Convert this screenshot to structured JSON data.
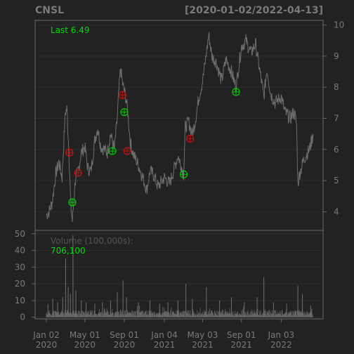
{
  "header": {
    "symbol": "CNSL",
    "range": "[2020-01-02/2022-04-13]"
  },
  "price_panel": {
    "last_label": "Last 6.49"
  },
  "volume_panel": {
    "label": "Volume (100,000s):",
    "last_value": "706,100"
  },
  "colors": {
    "background": "#222222",
    "panel_border": "#6b6b6b",
    "grid": "#2e2e2e",
    "price_line": "#6e6e6e",
    "volume_bar": "#6e6e6e",
    "label_gray": "#7a7a7a",
    "last_green": "#00dd00",
    "buy_marker": "#00cc00",
    "sell_marker": "#cc1111"
  },
  "chart_data": [
    {
      "type": "line",
      "title": "CNSL",
      "subtitle": "[2020-01-02/2022-04-13]",
      "x_range": [
        "2020-01-02",
        "2022-04-13"
      ],
      "ylim": [
        3.4,
        10.15
      ],
      "y_ticks": [
        4,
        5,
        6,
        7,
        8,
        9,
        10
      ],
      "y_tick_labels": [
        "4",
        "5",
        "6",
        "7",
        "8",
        "9",
        "10"
      ],
      "x_tick_labels": [
        {
          "date": "2020-01-02",
          "line1": "Jan 02",
          "line2": "2020"
        },
        {
          "date": "2020-05-01",
          "line1": "May 01",
          "line2": "2020"
        },
        {
          "date": "2020-09-01",
          "line1": "Sep 01",
          "line2": "2020"
        },
        {
          "date": "2021-01-04",
          "line1": "Jan 04",
          "line2": "2021"
        },
        {
          "date": "2021-05-03",
          "line1": "May 03",
          "line2": "2021"
        },
        {
          "date": "2021-09-01",
          "line1": "Sep 01",
          "line2": "2021"
        },
        {
          "date": "2022-01-03",
          "line1": "Jan 03",
          "line2": "2022"
        }
      ],
      "grid": true,
      "series": [
        {
          "points": [
            [
              "2020-01-02",
              3.9
            ],
            [
              "2020-01-10",
              4.0
            ],
            [
              "2020-01-20",
              4.3
            ],
            [
              "2020-01-31",
              5.2
            ],
            [
              "2020-02-10",
              5.6
            ],
            [
              "2020-02-20",
              5.1
            ],
            [
              "2020-03-01",
              7.2
            ],
            [
              "2020-03-06",
              7.3
            ],
            [
              "2020-03-12",
              6.0
            ],
            [
              "2020-03-18",
              4.2
            ],
            [
              "2020-03-23",
              3.7
            ],
            [
              "2020-04-01",
              5.0
            ],
            [
              "2020-04-10",
              5.3
            ],
            [
              "2020-04-20",
              5.9
            ],
            [
              "2020-05-01",
              6.1
            ],
            [
              "2020-05-10",
              5.4
            ],
            [
              "2020-05-20",
              5.3
            ],
            [
              "2020-06-01",
              6.3
            ],
            [
              "2020-06-10",
              6.7
            ],
            [
              "2020-06-20",
              6.1
            ],
            [
              "2020-07-01",
              6.0
            ],
            [
              "2020-07-10",
              5.9
            ],
            [
              "2020-07-20",
              6.5
            ],
            [
              "2020-08-01",
              6.0
            ],
            [
              "2020-08-10",
              7.0
            ],
            [
              "2020-08-15",
              7.9
            ],
            [
              "2020-08-20",
              8.6
            ],
            [
              "2020-08-27",
              8.1
            ],
            [
              "2020-09-05",
              7.7
            ],
            [
              "2020-09-12",
              7.2
            ],
            [
              "2020-09-20",
              6.2
            ],
            [
              "2020-10-01",
              5.8
            ],
            [
              "2020-10-15",
              5.5
            ],
            [
              "2020-11-01",
              5.0
            ],
            [
              "2020-11-10",
              4.7
            ],
            [
              "2020-11-20",
              5.3
            ],
            [
              "2020-12-01",
              5.2
            ],
            [
              "2020-12-15",
              4.8
            ],
            [
              "2021-01-04",
              5.1
            ],
            [
              "2021-01-20",
              4.9
            ],
            [
              "2021-02-01",
              5.3
            ],
            [
              "2021-02-15",
              5.8
            ],
            [
              "2021-02-25",
              5.5
            ],
            [
              "2021-03-05",
              5.2
            ],
            [
              "2021-03-10",
              6.7
            ],
            [
              "2021-03-20",
              6.9
            ],
            [
              "2021-04-01",
              6.5
            ],
            [
              "2021-04-10",
              6.9
            ],
            [
              "2021-04-20",
              7.6
            ],
            [
              "2021-05-03",
              8.2
            ],
            [
              "2021-05-15",
              9.1
            ],
            [
              "2021-05-22",
              9.7
            ],
            [
              "2021-06-01",
              9.0
            ],
            [
              "2021-06-15",
              8.8
            ],
            [
              "2021-07-01",
              8.2
            ],
            [
              "2021-07-15",
              8.9
            ],
            [
              "2021-08-01",
              8.5
            ],
            [
              "2021-08-15",
              8.0
            ],
            [
              "2021-09-01",
              9.3
            ],
            [
              "2021-09-15",
              9.5
            ],
            [
              "2021-10-01",
              9.1
            ],
            [
              "2021-10-15",
              9.4
            ],
            [
              "2021-11-01",
              8.3
            ],
            [
              "2021-11-10",
              7.7
            ],
            [
              "2021-11-20",
              8.6
            ],
            [
              "2021-12-01",
              7.8
            ],
            [
              "2021-12-15",
              7.5
            ],
            [
              "2022-01-03",
              7.7
            ],
            [
              "2022-01-15",
              7.2
            ],
            [
              "2022-02-01",
              7.0
            ],
            [
              "2022-02-10",
              7.2
            ],
            [
              "2022-02-15",
              7.1
            ],
            [
              "2022-02-20",
              6.8
            ],
            [
              "2022-02-24",
              4.9
            ],
            [
              "2022-03-01",
              5.2
            ],
            [
              "2022-03-15",
              5.7
            ],
            [
              "2022-04-01",
              6.0
            ],
            [
              "2022-04-13",
              6.5
            ]
          ]
        }
      ],
      "markers": [
        {
          "date": "2020-03-23",
          "value": 4.3,
          "kind": "buy"
        },
        {
          "date": "2020-03-14",
          "value": 5.9,
          "kind": "sell"
        },
        {
          "date": "2020-04-10",
          "value": 5.25,
          "kind": "sell"
        },
        {
          "date": "2020-07-26",
          "value": 5.95,
          "kind": "buy"
        },
        {
          "date": "2020-08-26",
          "value": 7.75,
          "kind": "sell"
        },
        {
          "date": "2020-09-01",
          "value": 7.2,
          "kind": "buy"
        },
        {
          "date": "2020-09-10",
          "value": 5.95,
          "kind": "sell"
        },
        {
          "date": "2021-03-05",
          "value": 5.2,
          "kind": "buy"
        },
        {
          "date": "2021-03-25",
          "value": 6.35,
          "kind": "sell"
        },
        {
          "date": "2021-08-15",
          "value": 7.85,
          "kind": "buy"
        }
      ]
    },
    {
      "type": "bar",
      "title": "Volume (100,000s):",
      "ylim": [
        -1,
        52
      ],
      "y_ticks": [
        0,
        10,
        20,
        30,
        40,
        50
      ],
      "y_tick_labels": [
        "0",
        "10",
        "20",
        "30",
        "40",
        "50"
      ],
      "spikes": [
        {
          "date": "2020-01-07",
          "value": 8
        },
        {
          "date": "2020-01-22",
          "value": 11
        },
        {
          "date": "2020-02-06",
          "value": 9
        },
        {
          "date": "2020-02-22",
          "value": 12
        },
        {
          "date": "2020-03-02",
          "value": 35
        },
        {
          "date": "2020-03-10",
          "value": 18
        },
        {
          "date": "2020-03-17",
          "value": 14
        },
        {
          "date": "2020-03-25",
          "value": 49
        },
        {
          "date": "2020-04-03",
          "value": 16
        },
        {
          "date": "2020-04-20",
          "value": 10
        },
        {
          "date": "2020-05-05",
          "value": 9
        },
        {
          "date": "2020-06-01",
          "value": 8
        },
        {
          "date": "2020-06-25",
          "value": 9
        },
        {
          "date": "2020-07-20",
          "value": 10
        },
        {
          "date": "2020-08-10",
          "value": 15
        },
        {
          "date": "2020-08-28",
          "value": 22
        },
        {
          "date": "2020-09-08",
          "value": 12
        },
        {
          "date": "2020-10-15",
          "value": 9
        },
        {
          "date": "2020-11-20",
          "value": 10
        },
        {
          "date": "2020-12-20",
          "value": 8
        },
        {
          "date": "2021-01-15",
          "value": 9
        },
        {
          "date": "2021-02-15",
          "value": 10
        },
        {
          "date": "2021-03-12",
          "value": 20
        },
        {
          "date": "2021-04-01",
          "value": 11
        },
        {
          "date": "2021-05-15",
          "value": 18
        },
        {
          "date": "2021-06-25",
          "value": 10
        },
        {
          "date": "2021-08-01",
          "value": 12
        },
        {
          "date": "2021-09-10",
          "value": 9
        },
        {
          "date": "2021-10-20",
          "value": 12
        },
        {
          "date": "2021-11-10",
          "value": 24
        },
        {
          "date": "2021-12-10",
          "value": 9
        },
        {
          "date": "2022-01-20",
          "value": 8
        },
        {
          "date": "2022-02-24",
          "value": 19
        },
        {
          "date": "2022-03-10",
          "value": 14
        },
        {
          "date": "2022-04-05",
          "value": 7
        }
      ]
    }
  ]
}
